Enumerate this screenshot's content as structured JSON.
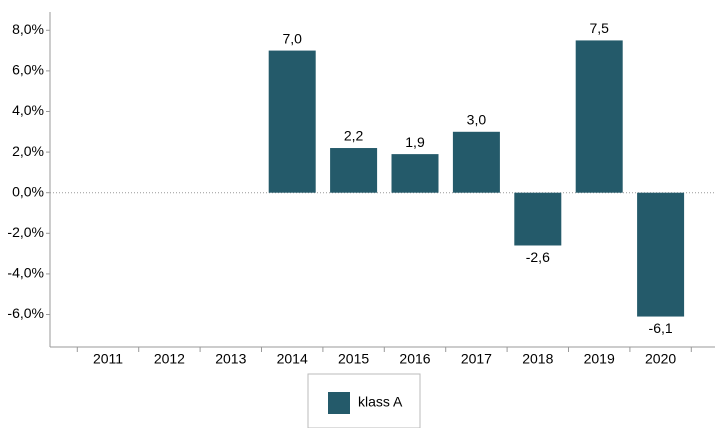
{
  "chart_data": {
    "type": "bar",
    "categories": [
      "2011",
      "2012",
      "2013",
      "2014",
      "2015",
      "2016",
      "2017",
      "2018",
      "2019",
      "2020"
    ],
    "series": [
      {
        "name": "klass A",
        "color": "#245a6a",
        "values": [
          null,
          null,
          null,
          7.0,
          2.2,
          1.9,
          3.0,
          -2.6,
          7.5,
          -6.1
        ],
        "value_labels": [
          null,
          null,
          null,
          "7,0",
          "2,2",
          "1,9",
          "3,0",
          "-2,6",
          "7,5",
          "-6,1"
        ]
      }
    ],
    "ylim": [
      -7.6,
      8.9
    ],
    "yticks": [
      {
        "value": 8,
        "label": "8,0%"
      },
      {
        "value": 6,
        "label": "6,0%"
      },
      {
        "value": 4,
        "label": "4,0%"
      },
      {
        "value": 2,
        "label": "2,0%"
      },
      {
        "value": 0,
        "label": "0,0%"
      },
      {
        "value": -2,
        "label": "-2,0%"
      },
      {
        "value": -4,
        "label": "-4,0%"
      },
      {
        "value": -6,
        "label": "-6,0%"
      }
    ],
    "legend": "bottom"
  }
}
